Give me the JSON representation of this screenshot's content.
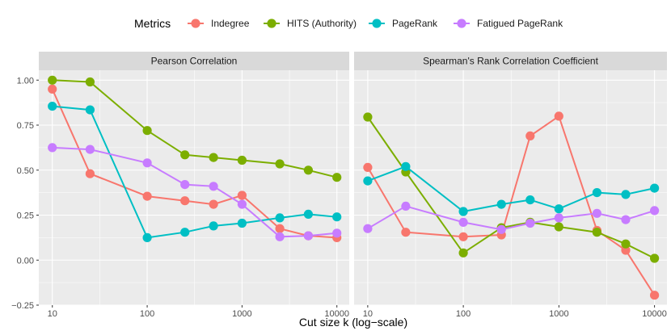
{
  "chart_data": {
    "type": "line",
    "xlabel": "Cut size k (log−scale)",
    "ylabel": "",
    "x_scale": "log10",
    "xlim": [
      7.2,
      13500
    ],
    "ylim": [
      -0.25,
      1.055
    ],
    "x_ticks": [
      10,
      100,
      1000,
      10000
    ],
    "x_tick_labels": [
      "10",
      "100",
      "1000",
      "10000"
    ],
    "y_ticks": [
      -0.25,
      0,
      0.25,
      0.5,
      0.75,
      1.0
    ],
    "y_tick_labels": [
      "−0.25",
      "0.00",
      "0.25",
      "0.50",
      "0.75",
      "1.00"
    ],
    "x": [
      10,
      25,
      100,
      250,
      500,
      1000,
      2500,
      5000,
      10000
    ],
    "legend": {
      "title": "Metrics",
      "position": "top",
      "entries": [
        {
          "name": "Indegree",
          "color": "#F8766D"
        },
        {
          "name": "HITS (Authority)",
          "color": "#7CAE00"
        },
        {
          "name": "PageRank",
          "color": "#00BFC4"
        },
        {
          "name": "Fatigued PageRank",
          "color": "#C77CFF"
        }
      ]
    },
    "panels": [
      {
        "title": "Pearson Correlation",
        "series": [
          {
            "name": "Indegree",
            "color": "#F8766D",
            "values": [
              0.95,
              0.48,
              0.355,
              0.33,
              0.31,
              0.36,
              0.175,
              0.135,
              0.125
            ]
          },
          {
            "name": "HITS (Authority)",
            "color": "#7CAE00",
            "values": [
              1.0,
              0.99,
              0.72,
              0.585,
              0.57,
              0.555,
              0.535,
              0.5,
              0.46
            ]
          },
          {
            "name": "PageRank",
            "color": "#00BFC4",
            "values": [
              0.855,
              0.835,
              0.125,
              0.155,
              0.19,
              0.205,
              0.235,
              0.255,
              0.24
            ]
          },
          {
            "name": "Fatigued PageRank",
            "color": "#C77CFF",
            "values": [
              0.625,
              0.615,
              0.54,
              0.42,
              0.41,
              0.31,
              0.13,
              0.135,
              0.15
            ]
          }
        ]
      },
      {
        "title": "Spearman's Rank Correlation Coefficient",
        "series": [
          {
            "name": "Indegree",
            "color": "#F8766D",
            "values": [
              0.515,
              0.155,
              0.13,
              0.14,
              0.69,
              0.8,
              0.165,
              0.055,
              -0.195
            ]
          },
          {
            "name": "HITS (Authority)",
            "color": "#7CAE00",
            "values": [
              0.795,
              0.49,
              0.04,
              0.18,
              0.21,
              0.185,
              0.155,
              0.09,
              0.01
            ]
          },
          {
            "name": "PageRank",
            "color": "#00BFC4",
            "values": [
              0.44,
              0.52,
              0.27,
              0.31,
              0.335,
              0.285,
              0.375,
              0.365,
              0.4
            ]
          },
          {
            "name": "Fatigued PageRank",
            "color": "#C77CFF",
            "values": [
              0.175,
              0.3,
              0.21,
              0.17,
              0.205,
              0.235,
              0.26,
              0.225,
              0.275
            ]
          }
        ]
      }
    ]
  }
}
